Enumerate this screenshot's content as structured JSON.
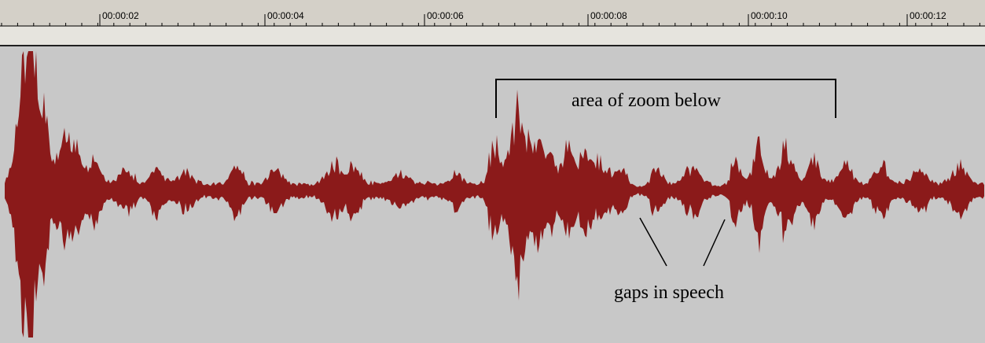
{
  "ruler": {
    "ticks": [
      "00:00:02",
      "00:00:04",
      "00:00:06",
      "00:00:08",
      "00:00:10",
      "00:00:12"
    ]
  },
  "annotations": {
    "zoom_label": "area of zoom below",
    "gaps_label": "gaps in speech"
  },
  "colors": {
    "waveform": "#8b1a1a",
    "panel_background": "#c8c8c8",
    "ruler_background": "#d4d0c8"
  }
}
